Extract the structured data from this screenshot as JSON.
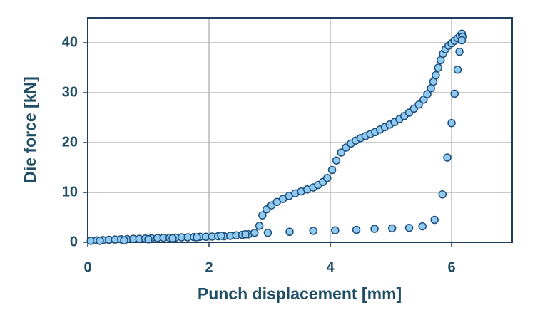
{
  "chart_data": {
    "type": "scatter",
    "x_label": "Punch displacement [mm]",
    "y_label": "Die force [kN]",
    "xlim": [
      0,
      7
    ],
    "xticks": [
      0,
      2,
      4,
      6
    ],
    "ylim": [
      0,
      45
    ],
    "yticks": [
      0,
      10,
      20,
      30,
      40
    ],
    "grid": true,
    "color": "#8fcaf2",
    "x": [
      0.05,
      0.15,
      0.25,
      0.35,
      0.45,
      0.55,
      0.65,
      0.75,
      0.85,
      0.95,
      1.05,
      1.15,
      1.25,
      1.35,
      1.45,
      1.55,
      1.65,
      1.75,
      1.85,
      1.95,
      2.05,
      2.15,
      2.25,
      2.35,
      2.45,
      2.55,
      2.65,
      2.75,
      2.83,
      2.88,
      2.95,
      3.03,
      3.12,
      3.22,
      3.32,
      3.42,
      3.52,
      3.62,
      3.72,
      3.8,
      3.88,
      3.95,
      4.03,
      4.1,
      4.18,
      4.26,
      4.34,
      4.42,
      4.5,
      4.58,
      4.66,
      4.74,
      4.82,
      4.9,
      4.98,
      5.06,
      5.14,
      5.22,
      5.3,
      5.38,
      5.46,
      5.54,
      5.6,
      5.66,
      5.7,
      5.74,
      5.78,
      5.82,
      5.86,
      5.9,
      5.95,
      6.0,
      6.05,
      6.1,
      6.14,
      6.17,
      6.18,
      6.17,
      6.13,
      6.1,
      6.05,
      6.0,
      5.93,
      5.85,
      5.72,
      5.52,
      5.3,
      5.02,
      4.73,
      4.43,
      4.08,
      3.72,
      3.33,
      2.97,
      2.6,
      2.2,
      1.8,
      1.4,
      1.0,
      0.6,
      0.2
    ],
    "values": [
      0.3,
      0.4,
      0.45,
      0.5,
      0.55,
      0.6,
      0.65,
      0.7,
      0.7,
      0.75,
      0.8,
      0.85,
      0.9,
      0.9,
      0.95,
      1.0,
      1.0,
      1.05,
      1.1,
      1.1,
      1.15,
      1.2,
      1.2,
      1.3,
      1.4,
      1.5,
      1.6,
      1.9,
      3.3,
      5.4,
      6.6,
      7.4,
      8.1,
      8.7,
      9.3,
      9.8,
      10.2,
      10.6,
      11.0,
      11.5,
      12.1,
      12.9,
      14.5,
      16.4,
      18.0,
      19.0,
      19.8,
      20.4,
      20.9,
      21.3,
      21.7,
      22.1,
      22.6,
      23.1,
      23.6,
      24.1,
      24.7,
      25.3,
      26.0,
      26.8,
      27.6,
      28.6,
      29.7,
      30.9,
      32.2,
      33.5,
      35,
      36.5,
      37.8,
      38.7,
      39.4,
      39.9,
      40.4,
      40.9,
      41.4,
      41.8,
      41.2,
      40.5,
      38.2,
      34.6,
      29.8,
      23.9,
      17.0,
      9.6,
      4.5,
      3.2,
      2.9,
      2.8,
      2.7,
      2.5,
      2.4,
      2.3,
      2.1,
      1.9,
      1.6,
      1.3,
      1.0,
      0.8,
      0.6,
      0.4,
      0.3
    ]
  }
}
